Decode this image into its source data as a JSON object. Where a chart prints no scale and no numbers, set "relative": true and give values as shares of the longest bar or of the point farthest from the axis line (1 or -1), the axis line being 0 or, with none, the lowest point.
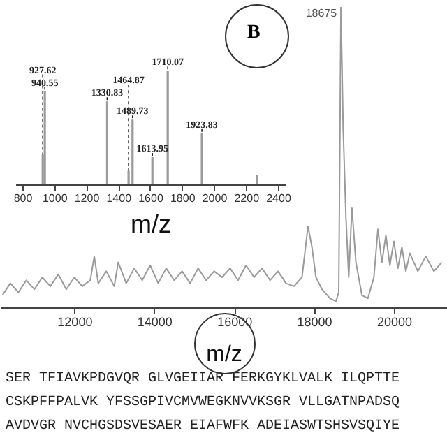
{
  "chart_data": [
    {
      "type": "line",
      "xlabel": "m/z",
      "relative": true,
      "xlim": [
        10140,
        21330
      ],
      "xticks": [
        12000,
        14000,
        16000,
        18000,
        20000
      ],
      "grid": false,
      "x": [
        10200,
        10400,
        10600,
        10800,
        11000,
        11200,
        11400,
        11600,
        11800,
        12000,
        12200,
        12400,
        12500,
        12600,
        12800,
        13000,
        13100,
        13300,
        13500,
        13700,
        13900,
        14100,
        14300,
        14500,
        14700,
        14900,
        15100,
        15300,
        15500,
        15700,
        15900,
        16100,
        16300,
        16500,
        16700,
        16900,
        17100,
        17300,
        17500,
        17700,
        17850,
        17950,
        18050,
        18200,
        18400,
        18550,
        18620,
        18675,
        18730,
        18800,
        18870,
        18950,
        19050,
        19200,
        19350,
        19500,
        19600,
        19700,
        19800,
        19900,
        20000,
        20100,
        20200,
        20300,
        20400,
        20600,
        20800,
        21000,
        21200
      ],
      "series": [
        {
          "color": "#9a9a9a",
          "values": [
            0.04,
            0.08,
            0.05,
            0.09,
            0.06,
            0.1,
            0.07,
            0.11,
            0.06,
            0.1,
            0.07,
            0.09,
            0.17,
            0.08,
            0.12,
            0.07,
            0.15,
            0.08,
            0.13,
            0.09,
            0.14,
            0.08,
            0.13,
            0.09,
            0.12,
            0.08,
            0.13,
            0.09,
            0.12,
            0.1,
            0.13,
            0.09,
            0.14,
            0.1,
            0.13,
            0.09,
            0.12,
            0.08,
            0.07,
            0.1,
            0.27,
            0.2,
            0.1,
            0.06,
            0.03,
            0.02,
            0.05,
            1,
            0.6,
            0.3,
            0.1,
            0.33,
            0.15,
            0.04,
            0.03,
            0.1,
            0.26,
            0.15,
            0.24,
            0.14,
            0.22,
            0.13,
            0.2,
            0.12,
            0.18,
            0.12,
            0.17,
            0.12,
            0.15
          ]
        }
      ],
      "annotations": [
        {
          "text": "18675",
          "x": 18675,
          "y": 1
        },
        "SER TFIAVKPDGVQR GLVGEIIAR FERKGYKLVALK ILQPTTE",
        "CSKPFFPALVK YFSSGPIVCMVWEGKNVVKSGR VLLGATNPADSQ",
        "AVDVGR NVCHGSDSVESAER EIAFWFK ADEIASWTSHSVSQIYE"
      ]
    },
    {
      "type": "bar",
      "xlabel": "m/z",
      "relative": true,
      "xlim": [
        800,
        2400
      ],
      "xticks": [
        800,
        1000,
        1200,
        1400,
        1600,
        1800,
        2000,
        2200,
        2400
      ],
      "grid": false,
      "x": [
        927.62,
        940.55,
        1330.83,
        1464.87,
        1489.73,
        1613.95,
        1710.07,
        1923.83,
        2270
      ],
      "series": [
        {
          "color": "#9a9a9a",
          "values": [
            0.26,
            0.82,
            0.73,
            0.12,
            0.57,
            0.24,
            1,
            0.45,
            0.08
          ]
        }
      ],
      "annotations": [
        "B",
        {
          "text": "927.62",
          "x": 927.62,
          "y": 0.26
        },
        {
          "text": "940.55",
          "x": 940.55,
          "y": 0.82
        },
        {
          "text": "1330.83",
          "x": 1330.83,
          "y": 0.73
        },
        {
          "text": "1464.87",
          "x": 1464.87,
          "y": 0.12
        },
        {
          "text": "1489.73",
          "x": 1489.73,
          "y": 0.57
        },
        {
          "text": "1613.95",
          "x": 1613.95,
          "y": 0.24
        },
        {
          "text": "1710.07",
          "x": 1710.07,
          "y": 1
        },
        {
          "text": "1923.83",
          "x": 1923.83,
          "y": 0.45
        }
      ]
    }
  ]
}
